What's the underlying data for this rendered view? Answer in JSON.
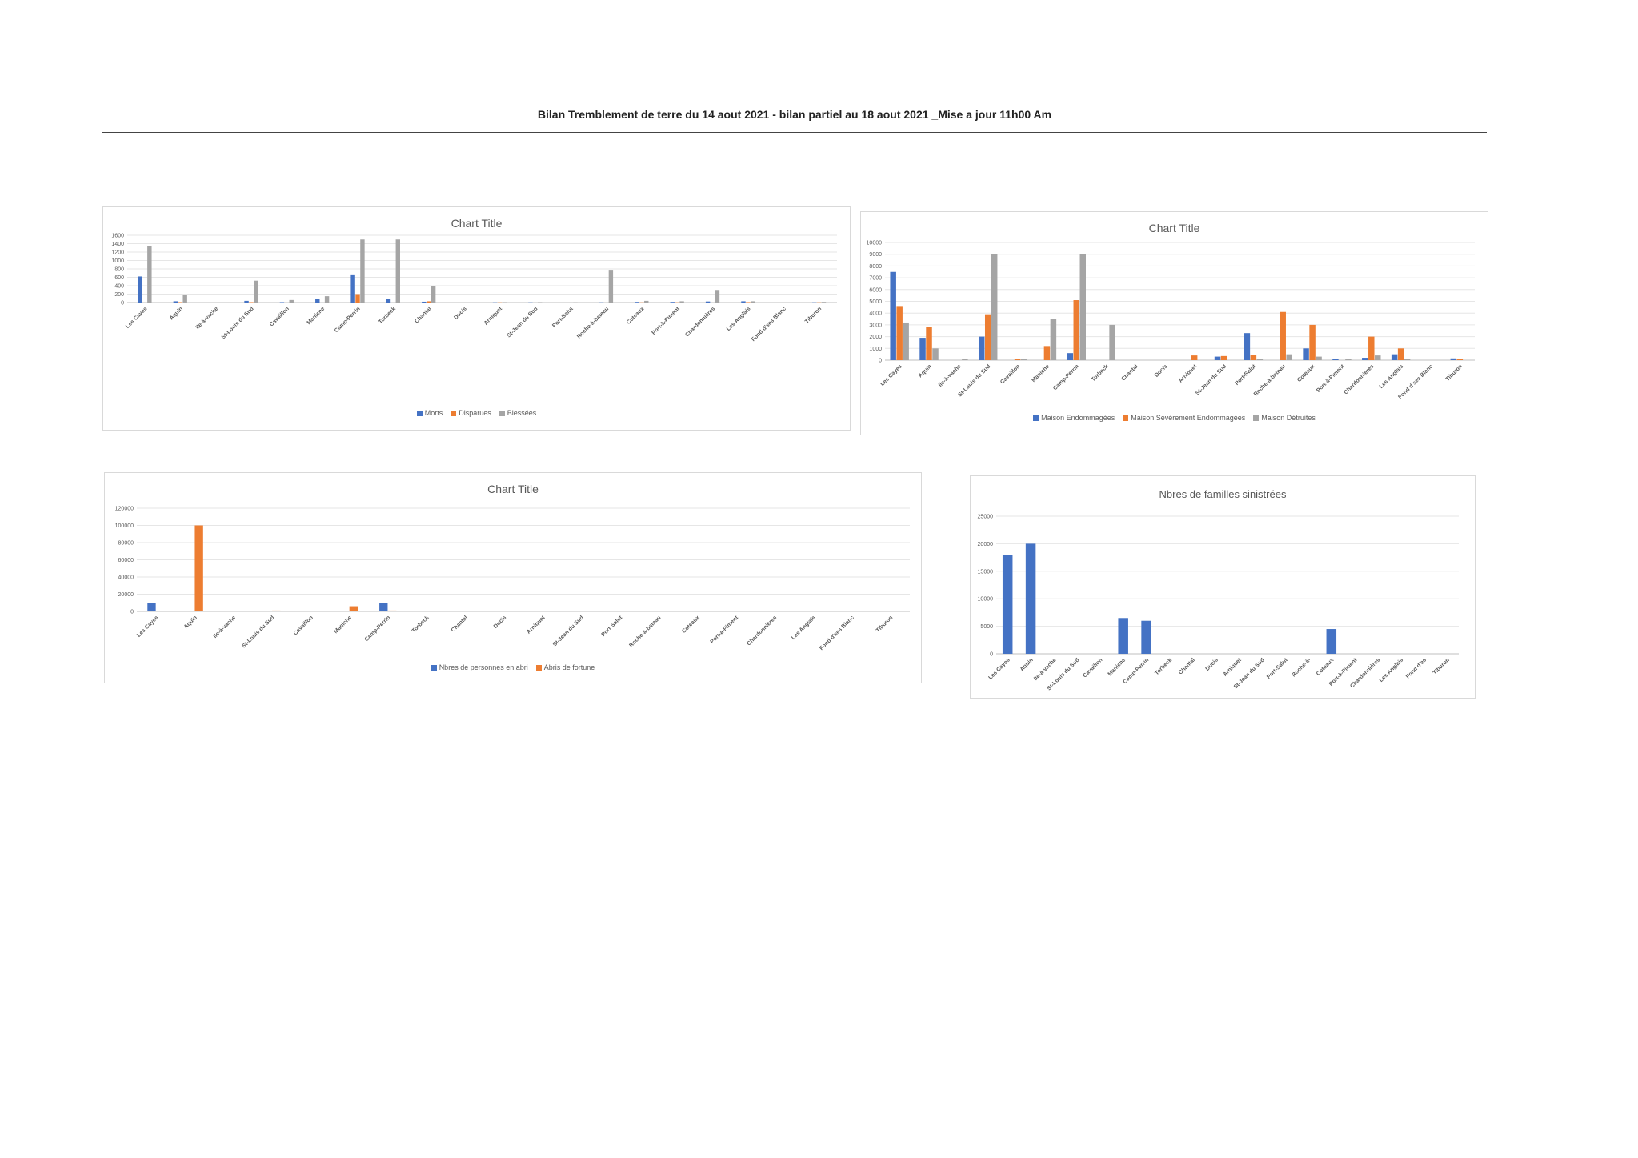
{
  "page": {
    "title": "Bilan Tremblement de terre du 14 aout 2021 - bilan partiel au 18 aout 2021 _Mise a jour 11h00 Am"
  },
  "colors": {
    "blue": "#4472C4",
    "orange": "#ED7D31",
    "gray": "#A5A5A5",
    "grid": "#e6e6e6"
  },
  "chart_data": [
    {
      "id": "casualties",
      "type": "bar",
      "title": "Chart Title",
      "xlabel": "",
      "ylabel": "",
      "legend_position": "bottom",
      "grid": true,
      "ylim": [
        0,
        1600
      ],
      "yticks": [
        0,
        200,
        400,
        600,
        800,
        1000,
        1200,
        1400,
        1600
      ],
      "categories": [
        "Les Cayes",
        "Aquin",
        "Ile-à-vache",
        "St-Louis du Sud",
        "Cavaillon",
        "Maniche",
        "Camp-Perrin",
        "Torbeck",
        "Chantal",
        "Ducis",
        "Arniquet",
        "St-Jean du Sud",
        "Port-Salut",
        "Roche-à-bateau",
        "Coteaux",
        "Port-à-Piment",
        "Chardonnières",
        "Les Anglais",
        "Fond d'ses Blanc",
        "Tiburon"
      ],
      "series": [
        {
          "name": "Morts",
          "color": "#4472C4",
          "values": [
            620,
            30,
            0,
            40,
            10,
            90,
            650,
            80,
            20,
            0,
            5,
            5,
            0,
            5,
            15,
            15,
            25,
            30,
            0,
            5
          ]
        },
        {
          "name": "Disparues",
          "color": "#ED7D31",
          "values": [
            0,
            10,
            0,
            10,
            0,
            0,
            200,
            0,
            30,
            0,
            5,
            0,
            0,
            0,
            5,
            5,
            0,
            10,
            0,
            5
          ]
        },
        {
          "name": "Blessées",
          "color": "#A5A5A5",
          "values": [
            1350,
            180,
            0,
            520,
            60,
            150,
            1500,
            1500,
            400,
            0,
            10,
            10,
            5,
            760,
            40,
            30,
            300,
            30,
            0,
            15
          ]
        }
      ]
    },
    {
      "id": "houses",
      "type": "bar",
      "title": "Chart Title",
      "xlabel": "",
      "ylabel": "",
      "legend_position": "bottom",
      "grid": true,
      "ylim": [
        0,
        10000
      ],
      "yticks": [
        0,
        1000,
        2000,
        3000,
        4000,
        5000,
        6000,
        7000,
        8000,
        9000,
        10000
      ],
      "categories": [
        "Les Cayes",
        "Aquin",
        "Ile-à-vache",
        "St-Louis du Sud",
        "Cavaillon",
        "Maniche",
        "Camp-Perrin",
        "Torbeck",
        "Chantal",
        "Ducis",
        "Arniquet",
        "St-Jean du Sud",
        "Port-Salut",
        "Roche-à-bateau",
        "Coteaux",
        "Port-à-Piment",
        "Chardonnières",
        "Les Anglais",
        "Fond d'ses Blanc",
        "Tiburon"
      ],
      "series": [
        {
          "name": "Maison Endommagées",
          "color": "#4472C4",
          "values": [
            7500,
            1900,
            0,
            2000,
            0,
            0,
            600,
            0,
            0,
            0,
            0,
            300,
            2300,
            0,
            1000,
            100,
            200,
            500,
            0,
            150
          ]
        },
        {
          "name": "Maison Sevèrement Endommagées",
          "color": "#ED7D31",
          "values": [
            4600,
            2800,
            0,
            3900,
            100,
            1200,
            5100,
            0,
            0,
            0,
            400,
            350,
            450,
            4100,
            3000,
            0,
            2000,
            1000,
            0,
            100
          ]
        },
        {
          "name": "Maison Détruites",
          "color": "#A5A5A5",
          "values": [
            3200,
            1000,
            100,
            9000,
            100,
            3500,
            9000,
            3000,
            0,
            0,
            0,
            0,
            100,
            500,
            300,
            100,
            400,
            100,
            0,
            0
          ]
        }
      ]
    },
    {
      "id": "shelters",
      "type": "bar",
      "title": "Chart Title",
      "xlabel": "",
      "ylabel": "",
      "legend_position": "bottom",
      "grid": true,
      "ylim": [
        0,
        120000
      ],
      "yticks": [
        0,
        20000,
        40000,
        60000,
        80000,
        100000,
        120000
      ],
      "categories": [
        "Les Cayes",
        "Aquin",
        "Ile-à-vache",
        "St-Louis du Sud",
        "Cavaillon",
        "Maniche",
        "Camp-Perrin",
        "Torbeck",
        "Chantal",
        "Ducis",
        "Arniquet",
        "St-Jean du Sud",
        "Port-Salut",
        "Roche-à-bateau",
        "Coteaux",
        "Port-à-Piment",
        "Chardonnières",
        "Les Anglais",
        "Fond d'ses Blanc",
        "Tiburon"
      ],
      "series": [
        {
          "name": "Nbres de personnes en abri",
          "color": "#4472C4",
          "values": [
            10000,
            0,
            0,
            0,
            0,
            0,
            9500,
            0,
            0,
            0,
            0,
            0,
            0,
            0,
            0,
            0,
            0,
            0,
            0,
            0
          ]
        },
        {
          "name": "Abris de fortune",
          "color": "#ED7D31",
          "values": [
            0,
            100000,
            0,
            1000,
            0,
            6000,
            1000,
            0,
            0,
            0,
            0,
            0,
            0,
            0,
            0,
            0,
            0,
            0,
            0,
            0
          ]
        }
      ]
    },
    {
      "id": "families",
      "type": "bar",
      "title": "Nbres de familles sinistrées",
      "xlabel": "",
      "ylabel": "",
      "grid": true,
      "ylim": [
        0,
        25000
      ],
      "yticks": [
        0,
        5000,
        10000,
        15000,
        20000,
        25000
      ],
      "categories": [
        "Les Cayes",
        "Aquin",
        "Ile-à-vache",
        "St-Louis du Sud",
        "Cavaillon",
        "Maniche",
        "Camp-Perrin",
        "Torbeck",
        "Chantal",
        "Ducis",
        "Arniquet",
        "St-Jean du Sud",
        "Port-Salut",
        "Roche-à-",
        "Coteaux",
        "Port-à-Piment",
        "Chardonnières",
        "Les Anglais",
        "Fond d'es",
        "Tiburon"
      ],
      "series": [
        {
          "name": "",
          "color": "#4472C4",
          "values": [
            18000,
            20000,
            0,
            0,
            0,
            6500,
            6000,
            0,
            0,
            0,
            0,
            0,
            0,
            0,
            4500,
            0,
            0,
            0,
            0,
            0
          ]
        }
      ]
    }
  ]
}
